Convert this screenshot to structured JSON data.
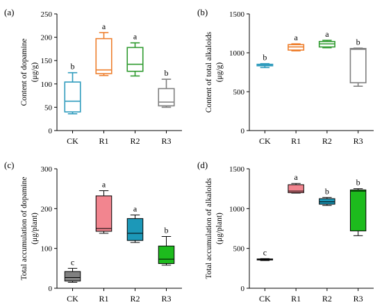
{
  "chart_data": [
    {
      "type": "boxplot",
      "panel_label": "(a)",
      "ylabel_lines": [
        "Content of dopamine",
        "(μg/g)"
      ],
      "categories": [
        "CK",
        "R1",
        "R2",
        "R3"
      ],
      "ylim": [
        0,
        250
      ],
      "yticks": [
        0,
        50,
        100,
        150,
        200,
        250
      ],
      "filled": false,
      "boxes": [
        {
          "category": "CK",
          "min": 36,
          "q1": 40,
          "median": 63,
          "q3": 104,
          "max": 124,
          "letter": "b",
          "color": "#2E9BBD"
        },
        {
          "category": "R1",
          "min": 118,
          "q1": 122,
          "median": 130,
          "q3": 197,
          "max": 210,
          "letter": "a",
          "color": "#EE7F2D"
        },
        {
          "category": "R2",
          "min": 117,
          "q1": 127,
          "median": 142,
          "q3": 178,
          "max": 188,
          "letter": "a",
          "color": "#2E9A2E"
        },
        {
          "category": "R3",
          "min": 50,
          "q1": 53,
          "median": 61,
          "q3": 90,
          "max": 110,
          "letter": "b",
          "color": "#7F7F7F"
        }
      ]
    },
    {
      "type": "boxplot",
      "panel_label": "(b)",
      "ylabel_lines": [
        "Content of total alkaloids",
        "(μg/g)"
      ],
      "categories": [
        "CK",
        "R1",
        "R2",
        "R3"
      ],
      "ylim": [
        0,
        1500
      ],
      "yticks": [
        0,
        500,
        1000,
        1500
      ],
      "filled": false,
      "boxes": [
        {
          "category": "CK",
          "min": 810,
          "q1": 833,
          "median": 843,
          "q3": 852,
          "max": 860,
          "letter": "b",
          "color": "#2E9BBD"
        },
        {
          "category": "R1",
          "min": 1025,
          "q1": 1035,
          "median": 1075,
          "q3": 1105,
          "max": 1115,
          "letter": "a",
          "color": "#EE7F2D"
        },
        {
          "category": "R2",
          "min": 1065,
          "q1": 1075,
          "median": 1115,
          "q3": 1145,
          "max": 1160,
          "letter": "a",
          "color": "#2E9A2E"
        },
        {
          "category": "R3",
          "min": 570,
          "q1": 615,
          "median": 1045,
          "q3": 1055,
          "max": 1060,
          "letter": "b",
          "color": "#7F7F7F"
        }
      ]
    },
    {
      "type": "boxplot",
      "panel_label": "(c)",
      "ylabel_lines": [
        "Total accumulation of  dopamine",
        "(μg/plant)"
      ],
      "categories": [
        "CK",
        "R1",
        "R2",
        "R3"
      ],
      "ylim": [
        0,
        300
      ],
      "yticks": [
        0,
        100,
        200,
        300
      ],
      "filled": true,
      "boxes": [
        {
          "category": "CK",
          "min": 15,
          "q1": 18,
          "median": 27,
          "q3": 42,
          "max": 50,
          "letter": "c",
          "color": "#808080"
        },
        {
          "category": "R1",
          "min": 138,
          "q1": 143,
          "median": 150,
          "q3": 232,
          "max": 245,
          "letter": "a",
          "color": "#F2858F"
        },
        {
          "category": "R2",
          "min": 115,
          "q1": 120,
          "median": 138,
          "q3": 175,
          "max": 184,
          "letter": "a",
          "color": "#1C98B8"
        },
        {
          "category": "R3",
          "min": 58,
          "q1": 62,
          "median": 73,
          "q3": 106,
          "max": 130,
          "letter": "b",
          "color": "#1DBB1D"
        }
      ]
    },
    {
      "type": "boxplot",
      "panel_label": "(d)",
      "ylabel_lines": [
        "Total accumulation of alkaloids",
        "(μg/plant)"
      ],
      "categories": [
        "CK",
        "R1",
        "R2",
        "R3"
      ],
      "ylim": [
        0,
        1500
      ],
      "yticks": [
        0,
        500,
        1000,
        1500
      ],
      "filled": true,
      "boxes": [
        {
          "category": "CK",
          "min": 348,
          "q1": 355,
          "median": 362,
          "q3": 368,
          "max": 372,
          "letter": "c",
          "color": "#808080"
        },
        {
          "category": "R1",
          "min": 1195,
          "q1": 1200,
          "median": 1220,
          "q3": 1300,
          "max": 1315,
          "letter": "a",
          "color": "#F2858F"
        },
        {
          "category": "R2",
          "min": 1040,
          "q1": 1055,
          "median": 1085,
          "q3": 1125,
          "max": 1140,
          "letter": "b",
          "color": "#1C98B8"
        },
        {
          "category": "R3",
          "min": 660,
          "q1": 720,
          "median": 1220,
          "q3": 1235,
          "max": 1250,
          "letter": "b",
          "color": "#1DBB1D"
        }
      ]
    }
  ]
}
